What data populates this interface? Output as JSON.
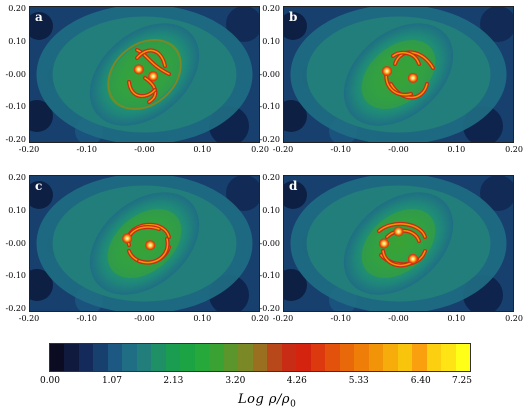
{
  "chart_data": [
    {
      "type": "heatmap",
      "panel_label": "a",
      "x_ticks": [
        "-0.20",
        "-0.10",
        "-0.00",
        "0.10",
        "0.20"
      ],
      "y_ticks": [
        "0.20",
        "0.10",
        "-0.00",
        "-0.10",
        "-0.20"
      ],
      "xlim": [
        -0.2,
        0.2
      ],
      "ylim": [
        -0.2,
        0.2
      ],
      "dense_clumps": [
        {
          "x": -0.01,
          "y": 0.015
        },
        {
          "x": 0.015,
          "y": -0.005
        }
      ]
    },
    {
      "type": "heatmap",
      "panel_label": "b",
      "x_ticks": [
        "-0.20",
        "-0.10",
        "-0.00",
        "0.10",
        "0.20"
      ],
      "y_ticks": [
        "0.20",
        "0.10",
        "-0.00",
        "-0.10",
        "-0.20"
      ],
      "xlim": [
        -0.2,
        0.2
      ],
      "ylim": [
        -0.2,
        0.2
      ],
      "dense_clumps": [
        {
          "x": -0.02,
          "y": 0.01
        },
        {
          "x": 0.025,
          "y": -0.01
        }
      ]
    },
    {
      "type": "heatmap",
      "panel_label": "c",
      "x_ticks": [
        "-0.20",
        "-0.10",
        "-0.00",
        "0.10",
        "0.20"
      ],
      "y_ticks": [
        "0.20",
        "0.10",
        "-0.00",
        "-0.10",
        "-0.20"
      ],
      "xlim": [
        -0.2,
        0.2
      ],
      "ylim": [
        -0.2,
        0.2
      ],
      "dense_clumps": [
        {
          "x": -0.03,
          "y": 0.015
        },
        {
          "x": 0.01,
          "y": -0.005
        }
      ]
    },
    {
      "type": "heatmap",
      "panel_label": "d",
      "x_ticks": [
        "-0.20",
        "-0.10",
        "-0.00",
        "0.10",
        "0.20"
      ],
      "y_ticks": [
        "0.20",
        "0.10",
        "-0.00",
        "-0.10",
        "-0.20"
      ],
      "xlim": [
        -0.2,
        0.2
      ],
      "ylim": [
        -0.2,
        0.2
      ],
      "dense_clumps": [
        {
          "x": 0.0,
          "y": 0.035
        },
        {
          "x": -0.025,
          "y": 0.0
        },
        {
          "x": 0.025,
          "y": -0.045
        }
      ]
    }
  ],
  "colorbar": {
    "ticks": [
      "0.00",
      "1.07",
      "2.13",
      "3.20",
      "4.26",
      "5.33",
      "6.40",
      "7.25"
    ],
    "range": [
      0,
      7.25
    ],
    "label_main": "Log ρ/ρ",
    "label_sub": "0",
    "colors": [
      "#0b0b22",
      "#101a3e",
      "#132a5a",
      "#17406e",
      "#1c5882",
      "#1f6e84",
      "#227e7a",
      "#1f8f66",
      "#1a9d50",
      "#1ca444",
      "#26a83a",
      "#3aa232",
      "#5a962c",
      "#7a8826",
      "#9a7020",
      "#b8481a",
      "#c82c14",
      "#d42410",
      "#dc3a0e",
      "#e2520c",
      "#e8680a",
      "#ee7e08",
      "#f29408",
      "#f6ac0a",
      "#f8c40c",
      "#faa00e",
      "#fcd010",
      "#fee414",
      "#ffff18"
    ]
  }
}
